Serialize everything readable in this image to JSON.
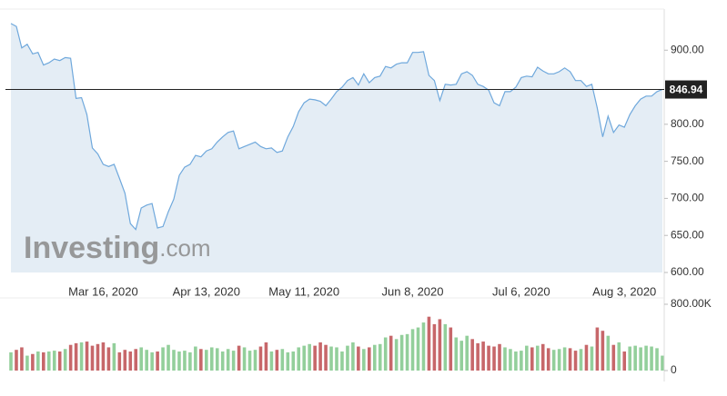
{
  "chart_data": {
    "type": "area",
    "categories": [
      null,
      null,
      null,
      null,
      null,
      null,
      null,
      null,
      null,
      null,
      null,
      null,
      null,
      null,
      null,
      null,
      null,
      "Mar 16, 2020",
      null,
      null,
      null,
      null,
      null,
      null,
      null,
      null,
      null,
      null,
      null,
      null,
      null,
      null,
      null,
      null,
      null,
      null,
      "Apr 13, 2020",
      null,
      null,
      null,
      null,
      null,
      null,
      null,
      null,
      null,
      null,
      null,
      null,
      null,
      null,
      null,
      null,
      null,
      "May 11, 2020",
      null,
      null,
      null,
      null,
      null,
      null,
      null,
      null,
      null,
      null,
      null,
      null,
      null,
      null,
      null,
      null,
      null,
      null,
      null,
      "Jun 8, 2020",
      null,
      null,
      null,
      null,
      null,
      null,
      null,
      null,
      null,
      null,
      null,
      null,
      null,
      null,
      null,
      null,
      null,
      null,
      null,
      "Jul 6, 2020",
      null,
      null,
      null,
      null,
      null,
      null,
      null,
      null,
      null,
      null,
      null,
      null,
      null,
      null,
      null,
      null,
      null,
      null,
      "Aug 3, 2020",
      null,
      null,
      null,
      null,
      null,
      null,
      null
    ],
    "values": [
      936,
      932,
      903,
      908,
      895,
      897,
      880,
      883,
      888,
      886,
      890,
      889,
      835,
      836,
      813,
      768,
      760,
      746,
      743,
      746,
      727,
      707,
      666,
      658,
      687,
      691,
      693,
      660,
      662,
      682,
      699,
      731,
      742,
      746,
      758,
      756,
      764,
      767,
      776,
      783,
      789,
      791,
      767,
      770,
      773,
      776,
      770,
      767,
      768,
      762,
      764,
      783,
      797,
      817,
      829,
      834,
      833,
      831,
      825,
      834,
      844,
      850,
      859,
      863,
      853,
      868,
      856,
      863,
      865,
      878,
      876,
      881,
      883,
      883,
      897,
      897,
      898,
      866,
      859,
      832,
      854,
      853,
      854,
      868,
      871,
      866,
      854,
      851,
      846,
      829,
      825,
      844,
      844,
      850,
      863,
      865,
      864,
      877,
      872,
      868,
      868,
      871,
      876,
      871,
      859,
      859,
      851,
      854,
      822,
      783,
      811,
      789,
      799,
      796,
      813,
      825,
      834,
      838,
      838,
      844,
      846.94
    ],
    "color": "#6fa8dc",
    "fill": "#e4edf5",
    "last_line_color": "#222222",
    "ylim": [
      600,
      953
    ],
    "yticks": [
      {
        "value": 600,
        "label": "600.00"
      },
      {
        "value": 650,
        "label": "650.00"
      },
      {
        "value": 700,
        "label": "700.00"
      },
      {
        "value": 750,
        "label": "750.00"
      },
      {
        "value": 800,
        "label": "800.00"
      },
      {
        "value": 900,
        "label": "900.00"
      }
    ],
    "volume": {
      "type": "bar",
      "values": [
        220000,
        250000,
        280000,
        180000,
        200000,
        230000,
        220000,
        230000,
        240000,
        230000,
        260000,
        310000,
        330000,
        340000,
        350000,
        300000,
        320000,
        340000,
        280000,
        330000,
        220000,
        250000,
        230000,
        260000,
        280000,
        250000,
        220000,
        230000,
        280000,
        310000,
        250000,
        230000,
        240000,
        220000,
        290000,
        260000,
        250000,
        280000,
        270000,
        230000,
        260000,
        240000,
        300000,
        280000,
        240000,
        250000,
        290000,
        340000,
        230000,
        250000,
        260000,
        220000,
        230000,
        280000,
        300000,
        320000,
        300000,
        340000,
        310000,
        290000,
        280000,
        230000,
        300000,
        340000,
        290000,
        260000,
        280000,
        310000,
        320000,
        400000,
        420000,
        380000,
        430000,
        440000,
        500000,
        520000,
        580000,
        650000,
        560000,
        620000,
        560000,
        520000,
        400000,
        360000,
        420000,
        380000,
        330000,
        350000,
        300000,
        290000,
        320000,
        280000,
        260000,
        230000,
        240000,
        300000,
        280000,
        300000,
        320000,
        270000,
        250000,
        260000,
        280000,
        270000,
        240000,
        260000,
        310000,
        290000,
        520000,
        480000,
        420000,
        310000,
        340000,
        230000,
        290000,
        300000,
        280000,
        300000,
        290000,
        270000,
        180000
      ],
      "ylim": [
        0,
        800000
      ],
      "yticks": [
        0,
        {
          "value": 800000,
          "label": "800.00K"
        }
      ],
      "up_color": "#93cf9b",
      "down_color": "#c7676a"
    },
    "watermark": {
      "brand": "Investing",
      "suffix": ".com"
    }
  }
}
